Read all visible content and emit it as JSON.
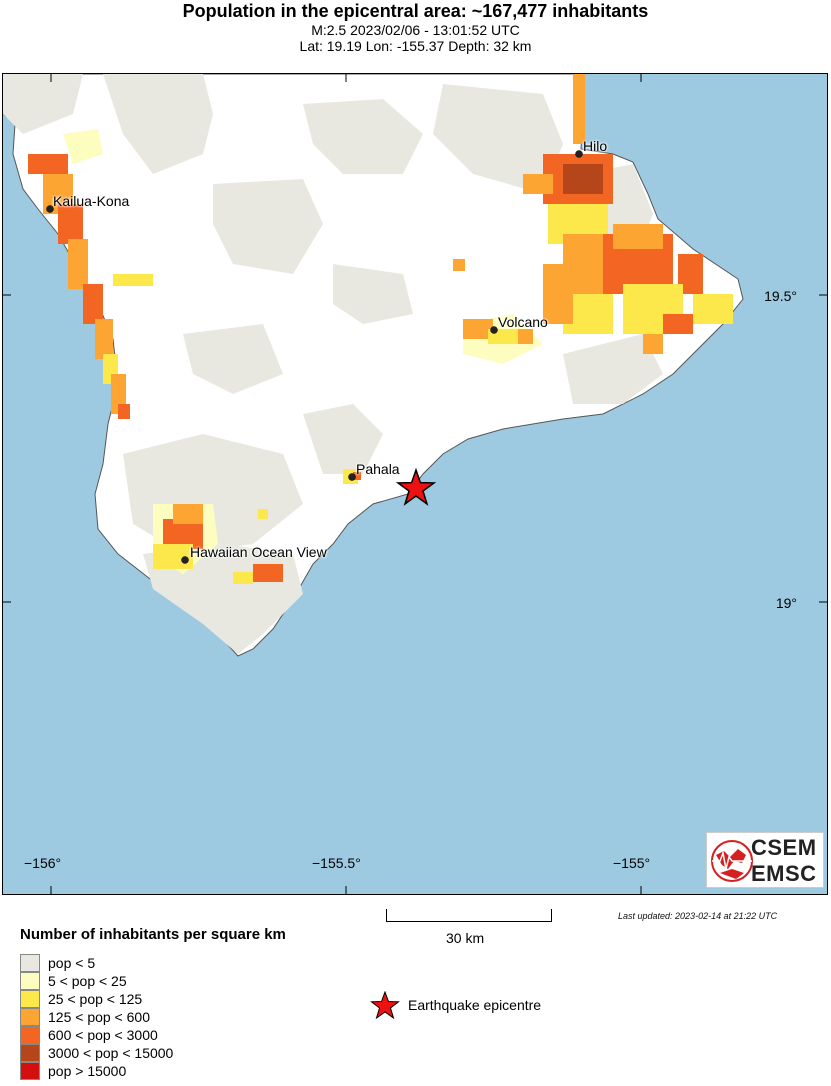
{
  "header": {
    "title": "Population in the epicentral area: ~167,477 inhabitants",
    "event": "M:2.5 2023/02/06 - 13:01:52 UTC",
    "location": "Lat: 19.19 Lon: -155.37 Depth: 32 km"
  },
  "map": {
    "colors": {
      "ocean": "#9ecae1",
      "land": "#ffffff",
      "coastline": "#555555",
      "epicenter": "#ee1111"
    },
    "longitude_ticks": [
      "−156°",
      "−155.5°",
      "−155°"
    ],
    "latitude_ticks": [
      "19.5°",
      "19°"
    ],
    "places": [
      {
        "name": "Hilo",
        "lat": 19.71,
        "lon": -155.08
      },
      {
        "name": "Kailua-Kona",
        "lat": 19.64,
        "lon": -155.99
      },
      {
        "name": "Volcano",
        "lat": 19.44,
        "lon": -155.23
      },
      {
        "name": "Pahala",
        "lat": 19.2,
        "lon": -155.48
      },
      {
        "name": "Hawaiian Ocean View",
        "lat": 19.07,
        "lon": -155.76
      }
    ],
    "epicenter": {
      "lat": 19.19,
      "lon": -155.37
    },
    "scale_label": "30 km",
    "last_updated": "Last updated: 2023-02-14 at 21:22 UTC",
    "logo": {
      "top": "CSEM",
      "bottom": "EMSC"
    }
  },
  "legend": {
    "title": "Number of inhabitants per square km",
    "items": [
      {
        "label": "pop < 5",
        "color": "#e8e8e0"
      },
      {
        "label": "5 < pop < 25",
        "color": "#fefdc0"
      },
      {
        "label": "25 < pop < 125",
        "color": "#fde84b"
      },
      {
        "label": "125 < pop < 600",
        "color": "#fca532"
      },
      {
        "label": "600 < pop < 3000",
        "color": "#f26522"
      },
      {
        "label": "3000 < pop < 15000",
        "color": "#b5461a"
      },
      {
        "label": "pop > 15000",
        "color": "#d40f0f"
      }
    ],
    "epicenter_label": "Earthquake epicentre"
  }
}
